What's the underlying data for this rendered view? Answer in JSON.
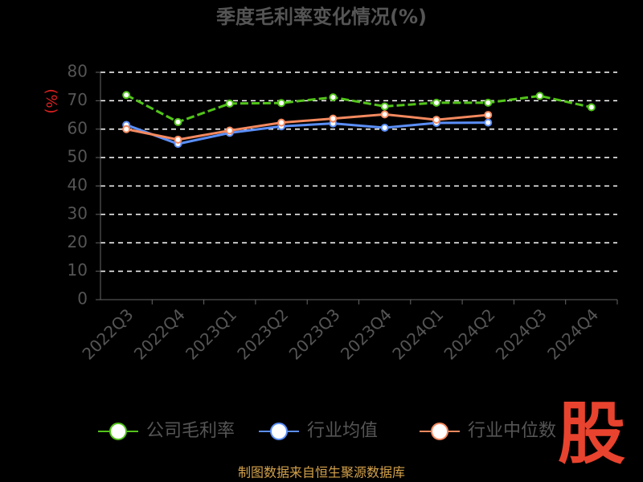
{
  "chart_data": {
    "type": "line",
    "title": "季度毛利率变化情况(%)",
    "y_label": "(%)",
    "categories": [
      "2022Q3",
      "2022Q4",
      "2023Q1",
      "2023Q2",
      "2023Q3",
      "2023Q4",
      "2024Q1",
      "2024Q2",
      "2024Q3",
      "2024Q4"
    ],
    "series": [
      {
        "name": "公司毛利率",
        "color": "#52c41a",
        "dashed": true,
        "values": [
          72,
          62.5,
          69,
          69.2,
          71.2,
          68,
          69.3,
          69.3,
          71.7,
          67.7
        ]
      },
      {
        "name": "行业均值",
        "color": "#5b8ff9",
        "dashed": false,
        "values": [
          61.5,
          54.8,
          58.7,
          61,
          62,
          60.5,
          62.2,
          62.3,
          null,
          null
        ]
      },
      {
        "name": "行业中位数",
        "color": "#f4895f",
        "dashed": false,
        "values": [
          60,
          56.3,
          59.5,
          62.3,
          63.7,
          65.2,
          63.3,
          65,
          null,
          null
        ]
      }
    ],
    "ylim": [
      0,
      80
    ],
    "yticks": [
      0,
      10,
      20,
      30,
      40,
      50,
      60,
      70,
      80
    ],
    "grid": true,
    "source": "制图数据来自恒生聚源数据库",
    "logo": "股"
  }
}
